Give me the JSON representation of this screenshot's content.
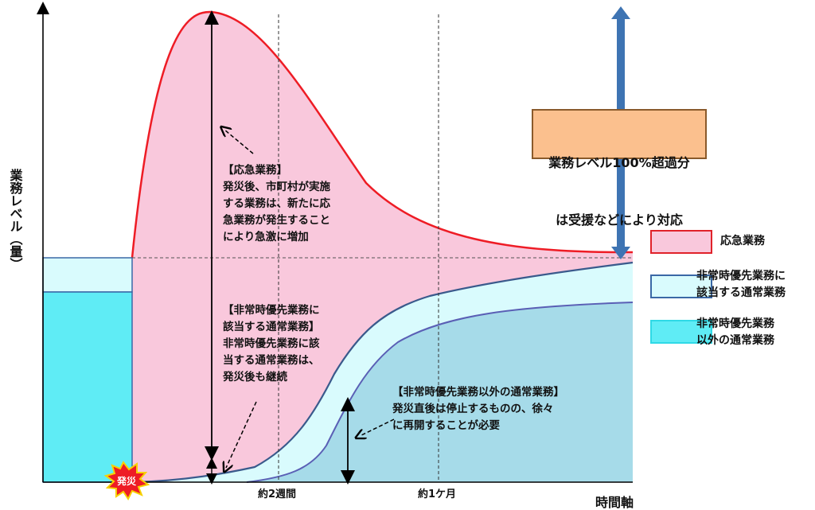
{
  "axes": {
    "y_label": "業務レベル（量）",
    "x_label": "時間軸",
    "ticks": [
      "約2週間",
      "約1ケ月"
    ]
  },
  "disaster_badge": "発災",
  "callout": {
    "line1": "業務レベル100%超過分",
    "line2": "は受援などにより対応"
  },
  "annotations": {
    "emergency": "【応急業務】\n発災後、市町村が実施\nする業務は、新たに応\n急業務が発生すること\nにより急激に増加",
    "priority_normal": "【非常時優先業務に\n該当する通常業務】\n非常時優先業務に該\n当する通常業務は、\n発災後も継続",
    "other_normal": "【非常時優先業務以外の通常業務】\n発災直後は停止するものの、徐々\nに再開することが必要"
  },
  "legend": [
    {
      "label": "応急業務",
      "fill": "#f9c8dc",
      "border": "#e0222a"
    },
    {
      "label": "非常時優先業務に\n該当する通常業務",
      "fill": "#d9fbfd",
      "border": "#3a68a6"
    },
    {
      "label": "非常時優先業務\n以外の通常業務",
      "fill": "#5fecf5",
      "border": "#2fd9e6"
    }
  ],
  "colors": {
    "emergency_fill": "#f9c8dc",
    "emergency_line": "#ee1c25",
    "priority_fill": "#d9fbfd",
    "other_fill": "#a6dbe9",
    "pre_disaster_fill": "#5fecf5",
    "curve_line": "#3a5a8c",
    "arrow_blue": "#3e74b3"
  },
  "icons": [
    "explosion-icon",
    "double-arrow-icon",
    "dashed-arrow-icon"
  ]
}
